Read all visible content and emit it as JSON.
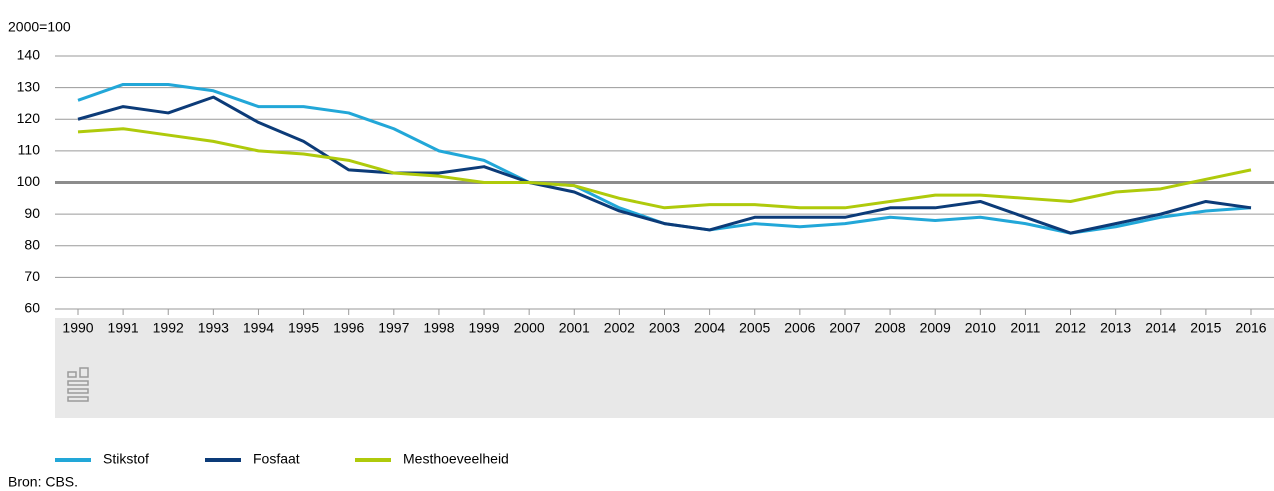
{
  "chart_data": {
    "type": "line",
    "y_label": "2000=100",
    "categories": [
      "1990",
      "1991",
      "1992",
      "1993",
      "1994",
      "1995",
      "1996",
      "1997",
      "1998",
      "1999",
      "2000",
      "2001",
      "2002",
      "2003",
      "2004",
      "2005",
      "2006",
      "2007",
      "2008",
      "2009",
      "2010",
      "2011",
      "2012",
      "2013",
      "2014",
      "2015",
      "2016"
    ],
    "series": [
      {
        "name": "Stikstof",
        "color": "#22a7d8",
        "values": [
          126,
          131,
          131,
          129,
          124,
          124,
          122,
          117,
          110,
          107,
          100,
          99,
          92,
          87,
          85,
          87,
          86,
          87,
          89,
          88,
          89,
          87,
          84,
          86,
          89,
          91,
          92
        ]
      },
      {
        "name": "Fosfaat",
        "color": "#0c3b78",
        "values": [
          120,
          124,
          122,
          127,
          119,
          113,
          104,
          103,
          103,
          105,
          100,
          97,
          91,
          87,
          85,
          89,
          89,
          89,
          92,
          92,
          94,
          89,
          84,
          87,
          90,
          94,
          92
        ]
      },
      {
        "name": "Mesthoeveelheid",
        "color": "#afca0b",
        "values": [
          116,
          117,
          115,
          113,
          110,
          109,
          107,
          103,
          102,
          100,
          100,
          99,
          95,
          92,
          93,
          93,
          92,
          92,
          94,
          96,
          96,
          95,
          94,
          97,
          98,
          101,
          104
        ]
      }
    ],
    "ylim": [
      60,
      140
    ],
    "yticks": [
      60,
      70,
      80,
      90,
      100,
      110,
      120,
      130,
      140
    ],
    "grid": true,
    "baseline": 100,
    "legend": "bottom",
    "source": "Bron: CBS."
  }
}
